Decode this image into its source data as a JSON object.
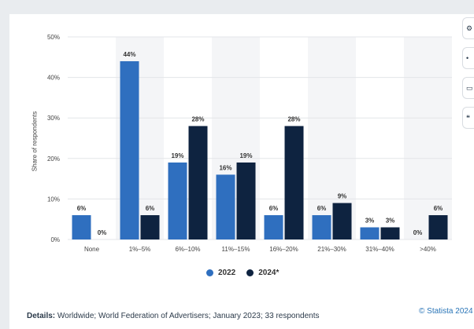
{
  "chart_data": {
    "type": "bar",
    "title": "",
    "xlabel": "",
    "ylabel": "Share of respondents",
    "ylim": [
      0,
      50
    ],
    "yticks": [
      "0%",
      "10%",
      "20%",
      "30%",
      "40%",
      "50%"
    ],
    "ytick_values": [
      0,
      10,
      20,
      30,
      40,
      50
    ],
    "categories": [
      "None",
      "1%–5%",
      "6%–10%",
      "11%–15%",
      "16%–20%",
      "21%–30%",
      "31%–40%",
      ">40%"
    ],
    "series": [
      {
        "name": "2022",
        "color": "#2f6fbf",
        "values": [
          6,
          44,
          19,
          16,
          6,
          6,
          3,
          0
        ],
        "labels": [
          "6%",
          "44%",
          "19%",
          "16%",
          "6%",
          "6%",
          "3%",
          "0%"
        ]
      },
      {
        "name": "2024*",
        "color": "#0e2340",
        "values": [
          0,
          6,
          28,
          19,
          28,
          9,
          3,
          6
        ],
        "labels": [
          "0%",
          "6%",
          "28%",
          "19%",
          "28%",
          "9%",
          "3%",
          "6%"
        ]
      }
    ],
    "grid": true,
    "legend_position": "bottom-center"
  },
  "footer": {
    "details_label": "Details:",
    "details_text": " Worldwide; World Federation of Advertisers; January 2023; 33 respondents",
    "copyright": "© Statista 2024"
  },
  "side_tools": [
    "gear-icon",
    "bell-icon",
    "print-icon",
    "quote-icon"
  ]
}
